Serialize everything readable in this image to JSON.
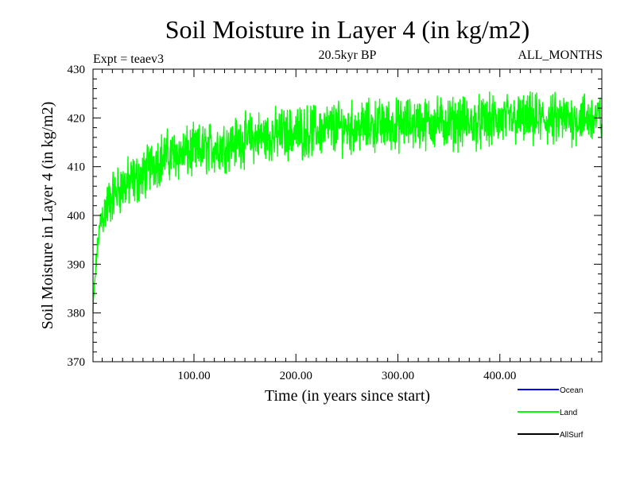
{
  "chart_data": {
    "type": "line",
    "title": "Soil Moisture in Layer 4 (in kg/m2)",
    "subtitle": "20.5kyr BP",
    "left_note": "Expt = teaev3",
    "right_note": "ALL_MONTHS",
    "xlabel": "Time (in years since start)",
    "ylabel": "Soil Moisture in Layer 4 (in kg/m2)",
    "xlim": [
      1,
      500
    ],
    "ylim": [
      370,
      430
    ],
    "x_ticks": [
      100,
      200,
      300,
      400
    ],
    "x_tick_labels": [
      "100.00",
      "200.00",
      "300.00",
      "400.00"
    ],
    "y_ticks": [
      370,
      380,
      390,
      400,
      410,
      420,
      430
    ],
    "y_tick_labels": [
      "370",
      "380",
      "390",
      "400",
      "410",
      "420",
      "430"
    ],
    "legend_position": "bottom-right",
    "series": [
      {
        "name": "Ocean",
        "color": "#0000ff",
        "x": [],
        "values": []
      },
      {
        "name": "Land",
        "color": "#00ff00",
        "x": [
          1,
          2,
          4,
          6,
          8,
          10,
          15,
          20,
          25,
          30,
          40,
          50,
          60,
          70,
          80,
          100,
          120,
          140,
          160,
          180,
          200,
          220,
          240,
          260,
          280,
          300,
          320,
          340,
          360,
          380,
          400,
          420,
          440,
          460,
          480,
          500
        ],
        "values": [
          380,
          384,
          390,
          395,
          398,
          400,
          402,
          404,
          405,
          406,
          407,
          408,
          411,
          412,
          412.5,
          413,
          414,
          415,
          416,
          416.5,
          417,
          417.5,
          418,
          418,
          418.5,
          418.5,
          419,
          419,
          419,
          419,
          419.5,
          419.5,
          419.5,
          419.5,
          420,
          420
        ],
        "noise_amplitude": 4
      },
      {
        "name": "AllSurf",
        "color": "#000000",
        "x": [],
        "values": []
      }
    ]
  }
}
